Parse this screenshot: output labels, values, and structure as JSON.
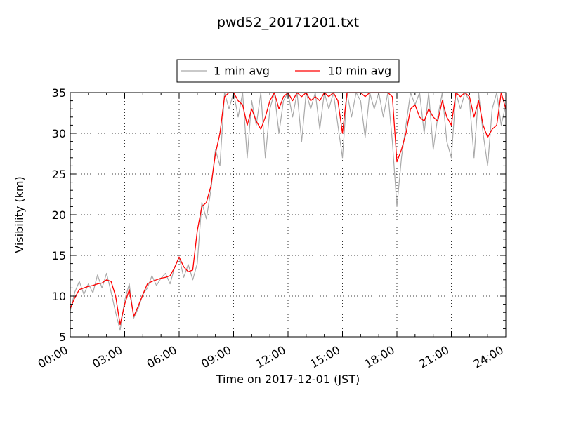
{
  "chart_data": {
    "type": "line",
    "title": "pwd52_20171201.txt",
    "xlabel": "Time on 2017-12-01 (JST)",
    "ylabel": "Visibility (km)",
    "xlim": [
      "00:00",
      "24:00"
    ],
    "ylim": [
      5,
      35
    ],
    "x_ticks": [
      "00:00",
      "03:00",
      "06:00",
      "09:00",
      "12:00",
      "15:00",
      "18:00",
      "21:00",
      "24:00"
    ],
    "y_ticks": [
      5,
      10,
      15,
      20,
      25,
      30,
      35
    ],
    "grid": true,
    "legend_position": "top-center",
    "series": [
      {
        "name": "1 min avg",
        "color": "#a9a9a9",
        "x": [
          "00:00",
          "00:15",
          "00:30",
          "00:45",
          "01:00",
          "01:15",
          "01:30",
          "01:45",
          "02:00",
          "02:15",
          "02:30",
          "02:45",
          "03:00",
          "03:15",
          "03:30",
          "03:45",
          "04:00",
          "04:15",
          "04:30",
          "04:45",
          "05:00",
          "05:15",
          "05:30",
          "05:45",
          "06:00",
          "06:15",
          "06:30",
          "06:45",
          "07:00",
          "07:15",
          "07:30",
          "07:45",
          "08:00",
          "08:15",
          "08:30",
          "08:45",
          "09:00",
          "09:15",
          "09:30",
          "09:45",
          "10:00",
          "10:15",
          "10:30",
          "10:45",
          "11:00",
          "11:15",
          "11:30",
          "11:45",
          "12:00",
          "12:15",
          "12:30",
          "12:45",
          "13:00",
          "13:15",
          "13:30",
          "13:45",
          "14:00",
          "14:15",
          "14:30",
          "14:45",
          "15:00",
          "15:15",
          "15:30",
          "15:45",
          "16:00",
          "16:15",
          "16:30",
          "16:45",
          "17:00",
          "17:15",
          "17:30",
          "17:45",
          "18:00",
          "18:15",
          "18:30",
          "18:45",
          "19:00",
          "19:15",
          "19:30",
          "19:45",
          "20:00",
          "20:15",
          "20:30",
          "20:45",
          "21:00",
          "21:15",
          "21:30",
          "21:45",
          "22:00",
          "22:15",
          "22:30",
          "22:45",
          "23:00",
          "23:15",
          "23:30",
          "23:45",
          "24:00"
        ],
        "values": [
          8.2,
          10.5,
          11.8,
          10.2,
          11.5,
          10.4,
          12.6,
          11.0,
          12.8,
          10.5,
          8.0,
          5.8,
          9.5,
          11.5,
          7.3,
          8.5,
          10.2,
          11.0,
          12.5,
          11.3,
          12.2,
          12.8,
          11.5,
          13.5,
          14.8,
          12.3,
          13.9,
          12.0,
          14.0,
          21.5,
          19.5,
          23.0,
          28.0,
          26.0,
          35.0,
          33.0,
          35.0,
          32.0,
          35.0,
          27.0,
          34.0,
          31.0,
          35.0,
          27.0,
          33.0,
          35.0,
          30.0,
          34.0,
          35.0,
          32.0,
          35.0,
          29.0,
          35.0,
          33.0,
          35.0,
          30.5,
          35.0,
          33.0,
          35.0,
          31.0,
          27.0,
          35.0,
          32.0,
          35.0,
          34.0,
          29.5,
          35.0,
          33.0,
          35.0,
          32.0,
          35.0,
          29.0,
          21.0,
          27.0,
          31.0,
          35.0,
          33.5,
          35.0,
          30.0,
          35.0,
          28.0,
          32.0,
          35.0,
          29.0,
          27.0,
          35.0,
          33.0,
          35.0,
          34.0,
          27.0,
          35.0,
          30.0,
          26.0,
          33.0,
          35.0,
          31.0,
          33.5
        ]
      },
      {
        "name": "10 min avg",
        "color": "#ff0000",
        "x": [
          "00:00",
          "00:15",
          "00:30",
          "00:45",
          "01:00",
          "01:15",
          "01:30",
          "01:45",
          "02:00",
          "02:15",
          "02:30",
          "02:45",
          "03:00",
          "03:15",
          "03:30",
          "03:45",
          "04:00",
          "04:15",
          "04:30",
          "04:45",
          "05:00",
          "05:15",
          "05:30",
          "05:45",
          "06:00",
          "06:15",
          "06:30",
          "06:45",
          "07:00",
          "07:15",
          "07:30",
          "07:45",
          "08:00",
          "08:15",
          "08:30",
          "08:45",
          "09:00",
          "09:15",
          "09:30",
          "09:45",
          "10:00",
          "10:15",
          "10:30",
          "10:45",
          "11:00",
          "11:15",
          "11:30",
          "11:45",
          "12:00",
          "12:15",
          "12:30",
          "12:45",
          "13:00",
          "13:15",
          "13:30",
          "13:45",
          "14:00",
          "14:15",
          "14:30",
          "14:45",
          "15:00",
          "15:15",
          "15:30",
          "15:45",
          "16:00",
          "16:15",
          "16:30",
          "16:45",
          "17:00",
          "17:15",
          "17:30",
          "17:45",
          "18:00",
          "18:15",
          "18:30",
          "18:45",
          "19:00",
          "19:15",
          "19:30",
          "19:45",
          "20:00",
          "20:15",
          "20:30",
          "20:45",
          "21:00",
          "21:15",
          "21:30",
          "21:45",
          "22:00",
          "22:15",
          "22:30",
          "22:45",
          "23:00",
          "23:15",
          "23:30",
          "23:45",
          "24:00"
        ],
        "values": [
          8.5,
          9.8,
          10.8,
          11.0,
          11.2,
          11.3,
          11.5,
          11.6,
          12.0,
          11.8,
          10.0,
          6.5,
          9.0,
          10.8,
          7.5,
          8.8,
          10.2,
          11.5,
          11.8,
          12.0,
          12.2,
          12.3,
          12.5,
          13.5,
          14.8,
          13.6,
          13.0,
          13.2,
          18.0,
          21.0,
          21.5,
          23.5,
          27.5,
          30.0,
          34.5,
          35.0,
          35.0,
          34.0,
          33.5,
          31.0,
          33.0,
          31.5,
          30.5,
          32.0,
          34.0,
          35.0,
          33.0,
          34.5,
          35.0,
          34.0,
          35.0,
          34.5,
          35.0,
          34.0,
          34.5,
          34.0,
          35.0,
          34.5,
          35.0,
          34.0,
          30.0,
          35.0,
          35.0,
          35.0,
          35.0,
          34.5,
          35.0,
          35.0,
          35.0,
          35.0,
          35.0,
          34.5,
          26.5,
          28.0,
          30.0,
          33.0,
          33.5,
          32.0,
          31.5,
          33.0,
          32.0,
          31.5,
          34.0,
          32.0,
          31.0,
          35.0,
          34.5,
          35.0,
          34.5,
          32.0,
          34.0,
          31.0,
          29.5,
          30.5,
          31.0,
          35.0,
          33.0
        ]
      }
    ]
  }
}
